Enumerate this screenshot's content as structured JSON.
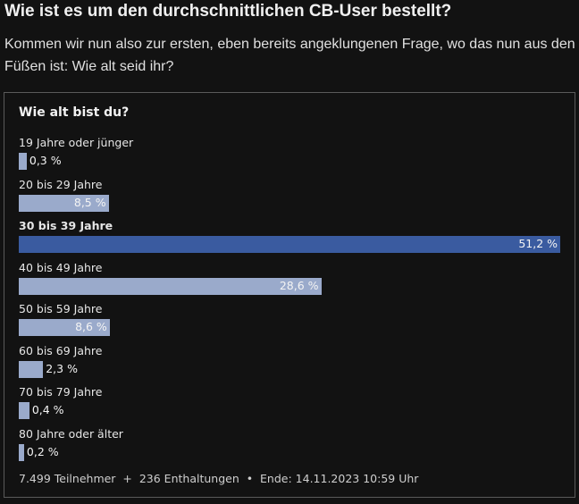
{
  "article": {
    "title": "Wie ist es um den durchschnittlichen CB-User bestellt?",
    "intro": "Kommen wir nun also zur ersten, eben bereits angeklungenen Frage, wo das nun aus den Füßen ist: Wie alt seid ihr?"
  },
  "poll": {
    "question": "Wie alt bist du?",
    "colors": {
      "bar": "#9aaacb",
      "winner_bar": "#3a5ba0"
    },
    "footer": {
      "participants": "7.499 Teilnehmer",
      "sep1": "+",
      "abstentions": "236 Enthaltungen",
      "sep2": "•",
      "end": "Ende: 14.11.2023 10:59 Uhr"
    }
  },
  "chart_data": {
    "type": "bar",
    "orientation": "horizontal",
    "title": "Wie alt bist du?",
    "categories": [
      "19 Jahre oder jünger",
      "20 bis 29 Jahre",
      "30 bis 39 Jahre",
      "40 bis 49 Jahre",
      "50 bis 59 Jahre",
      "60 bis 69 Jahre",
      "70 bis 79 Jahre",
      "80 Jahre oder älter"
    ],
    "values": [
      0.3,
      8.5,
      51.2,
      28.6,
      8.6,
      2.3,
      0.4,
      0.2
    ],
    "value_labels": [
      "0,3 %",
      "8,5 %",
      "51,2 %",
      "28,6 %",
      "8,6 %",
      "2,3 %",
      "0,4 %",
      "0,2 %"
    ],
    "unit": "%",
    "highlight": "30 bis 39 Jahre"
  }
}
